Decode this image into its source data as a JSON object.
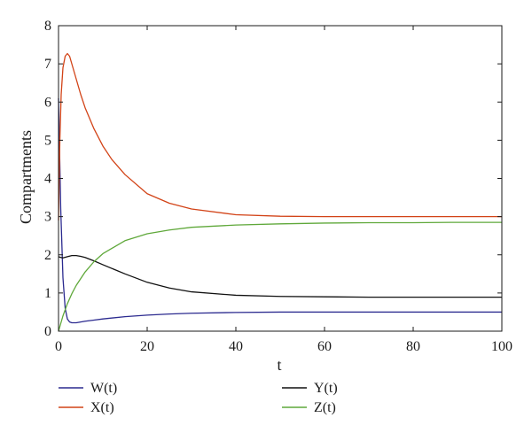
{
  "chart_data": {
    "type": "line",
    "title": "",
    "xlabel": "t",
    "ylabel": "Compartments",
    "xlim": [
      0,
      100
    ],
    "ylim": [
      0,
      8
    ],
    "xticks": [
      0,
      20,
      40,
      60,
      80,
      100
    ],
    "yticks": [
      0,
      1,
      2,
      3,
      4,
      5,
      6,
      7,
      8
    ],
    "grid": false,
    "legend_position": "bottom",
    "series": [
      {
        "name": "W(t)",
        "color": "#2b2a8f",
        "x": [
          0,
          0.5,
          1,
          1.5,
          2,
          2.5,
          3,
          4,
          5,
          6,
          8,
          10,
          15,
          20,
          25,
          30,
          40,
          50,
          60,
          70,
          80,
          90,
          100
        ],
        "y": [
          6.1,
          3.2,
          1.4,
          0.6,
          0.32,
          0.24,
          0.22,
          0.22,
          0.24,
          0.26,
          0.29,
          0.32,
          0.38,
          0.42,
          0.45,
          0.47,
          0.49,
          0.5,
          0.5,
          0.5,
          0.5,
          0.5,
          0.5
        ]
      },
      {
        "name": "X(t)",
        "color": "#d24317",
        "x": [
          0,
          0.3,
          0.6,
          1,
          1.5,
          2,
          2.5,
          3,
          4,
          5,
          6,
          8,
          10,
          12,
          15,
          20,
          25,
          30,
          40,
          50,
          60,
          70,
          80,
          90,
          100
        ],
        "y": [
          2.9,
          5.0,
          6.2,
          6.9,
          7.2,
          7.27,
          7.2,
          7.0,
          6.6,
          6.2,
          5.85,
          5.3,
          4.85,
          4.5,
          4.1,
          3.6,
          3.35,
          3.2,
          3.05,
          3.01,
          3.0,
          3.0,
          3.0,
          3.0,
          3.0
        ]
      },
      {
        "name": "Y(t)",
        "color": "#111111",
        "x": [
          0,
          0.5,
          1,
          2,
          3,
          4,
          5,
          6,
          8,
          10,
          15,
          20,
          25,
          30,
          40,
          50,
          60,
          70,
          80,
          90,
          100
        ],
        "y": [
          1.95,
          1.93,
          1.92,
          1.95,
          1.98,
          1.98,
          1.96,
          1.93,
          1.84,
          1.74,
          1.5,
          1.28,
          1.13,
          1.03,
          0.94,
          0.91,
          0.9,
          0.89,
          0.89,
          0.89,
          0.89
        ]
      },
      {
        "name": "Z(t)",
        "color": "#5fa83a",
        "x": [
          0,
          0.5,
          1,
          2,
          3,
          4,
          6,
          8,
          10,
          15,
          20,
          25,
          30,
          40,
          50,
          60,
          70,
          80,
          90,
          100
        ],
        "y": [
          0.0,
          0.2,
          0.4,
          0.72,
          0.98,
          1.2,
          1.55,
          1.82,
          2.03,
          2.37,
          2.55,
          2.65,
          2.72,
          2.78,
          2.81,
          2.83,
          2.84,
          2.84,
          2.85,
          2.85
        ]
      }
    ]
  }
}
